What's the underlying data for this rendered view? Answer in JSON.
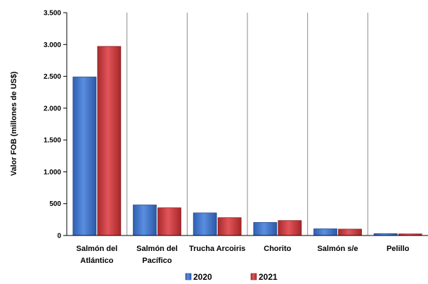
{
  "chart_data": {
    "type": "bar",
    "categories": [
      [
        "Salmón del",
        "Atlántico"
      ],
      [
        "Salmón del",
        "Pacífico"
      ],
      [
        "Trucha Arcoiris"
      ],
      [
        "Chorito"
      ],
      [
        "Salmón s/e"
      ],
      [
        "Pelillo"
      ]
    ],
    "series": [
      {
        "name": "2020",
        "color": "#3f74c9",
        "values": [
          2490,
          480,
          355,
          205,
          105,
          30
        ]
      },
      {
        "name": "2021",
        "color": "#c8373a",
        "values": [
          2970,
          435,
          280,
          235,
          100,
          25
        ]
      }
    ],
    "ylabel": "Valor FOB (millones de US$)",
    "ylim": [
      0,
      3500
    ],
    "yticks": [
      0,
      500,
      1000,
      1500,
      2000,
      2500,
      3000,
      3500
    ],
    "ytick_labels": [
      "0",
      "500",
      "1.000",
      "1.500",
      "2.000",
      "2.500",
      "3.000",
      "3.500"
    ],
    "grid": "vertical category separators",
    "legend_position": "bottom"
  }
}
